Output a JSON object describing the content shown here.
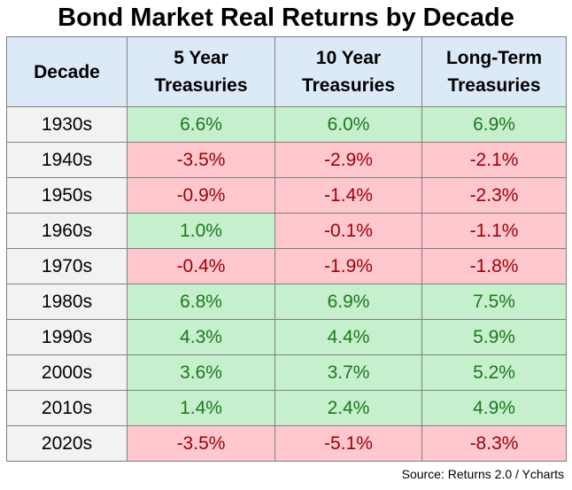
{
  "title": "Bond Market Real Returns by Decade",
  "table": {
    "header": [
      "Decade",
      "5 Year Treasuries",
      "10 Year Treasuries",
      "Long-Term Treasuries"
    ],
    "rows": [
      [
        "1930s",
        "6.6%",
        "6.0%",
        "6.9%"
      ],
      [
        "1940s",
        "-3.5%",
        "-2.9%",
        "-2.1%"
      ],
      [
        "1950s",
        "-0.9%",
        "-1.4%",
        "-2.3%"
      ],
      [
        "1960s",
        "1.0%",
        "-0.1%",
        "-1.1%"
      ],
      [
        "1970s",
        "-0.4%",
        "-1.9%",
        "-1.8%"
      ],
      [
        "1980s",
        "6.8%",
        "6.9%",
        "7.5%"
      ],
      [
        "1990s",
        "4.3%",
        "4.4%",
        "5.9%"
      ],
      [
        "2000s",
        "3.6%",
        "3.7%",
        "5.2%"
      ],
      [
        "2010s",
        "1.4%",
        "2.4%",
        "4.9%"
      ],
      [
        "2020s",
        "-3.5%",
        "-5.1%",
        "-8.3%"
      ]
    ]
  },
  "source": "Source: Returns 2.0 / Ycharts"
}
